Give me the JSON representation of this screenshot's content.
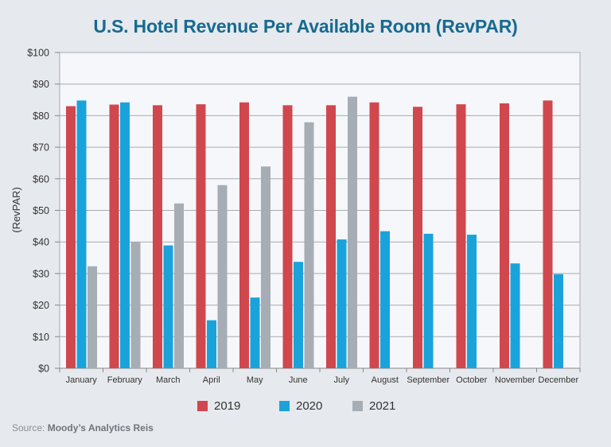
{
  "chart_data": {
    "type": "bar",
    "title": "U.S. Hotel Revenue Per Available Room (RevPAR)",
    "xlabel": "",
    "ylabel": "(RevPAR)",
    "ylim": [
      0,
      100
    ],
    "yticks": [
      0,
      10,
      20,
      30,
      40,
      50,
      60,
      70,
      80,
      90,
      100
    ],
    "ytick_labels": [
      "$0",
      "$10",
      "$20",
      "$30",
      "$40",
      "$50",
      "$60",
      "$70",
      "$80",
      "$90",
      "$100"
    ],
    "grid": true,
    "legend_position": "bottom",
    "categories": [
      "January",
      "February",
      "March",
      "April",
      "May",
      "June",
      "July",
      "August",
      "September",
      "October",
      "November",
      "December"
    ],
    "series": [
      {
        "name": "2019",
        "color": "#d0474e",
        "values": [
          83.0,
          83.5,
          83.3,
          83.6,
          84.2,
          83.3,
          83.3,
          84.2,
          82.8,
          83.6,
          83.9,
          84.8
        ]
      },
      {
        "name": "2020",
        "color": "#1aa3db",
        "values": [
          84.8,
          84.2,
          38.9,
          15.2,
          22.4,
          33.7,
          40.8,
          43.4,
          42.6,
          42.3,
          33.2,
          29.8
        ]
      },
      {
        "name": "2021",
        "color": "#a7adb5",
        "values": [
          32.3,
          40.0,
          52.2,
          58.0,
          63.9,
          77.9,
          86.0,
          null,
          null,
          null,
          null,
          null
        ]
      }
    ]
  },
  "source": {
    "prefix": "Source:",
    "name": "Moody’s Analytics Reis"
  }
}
